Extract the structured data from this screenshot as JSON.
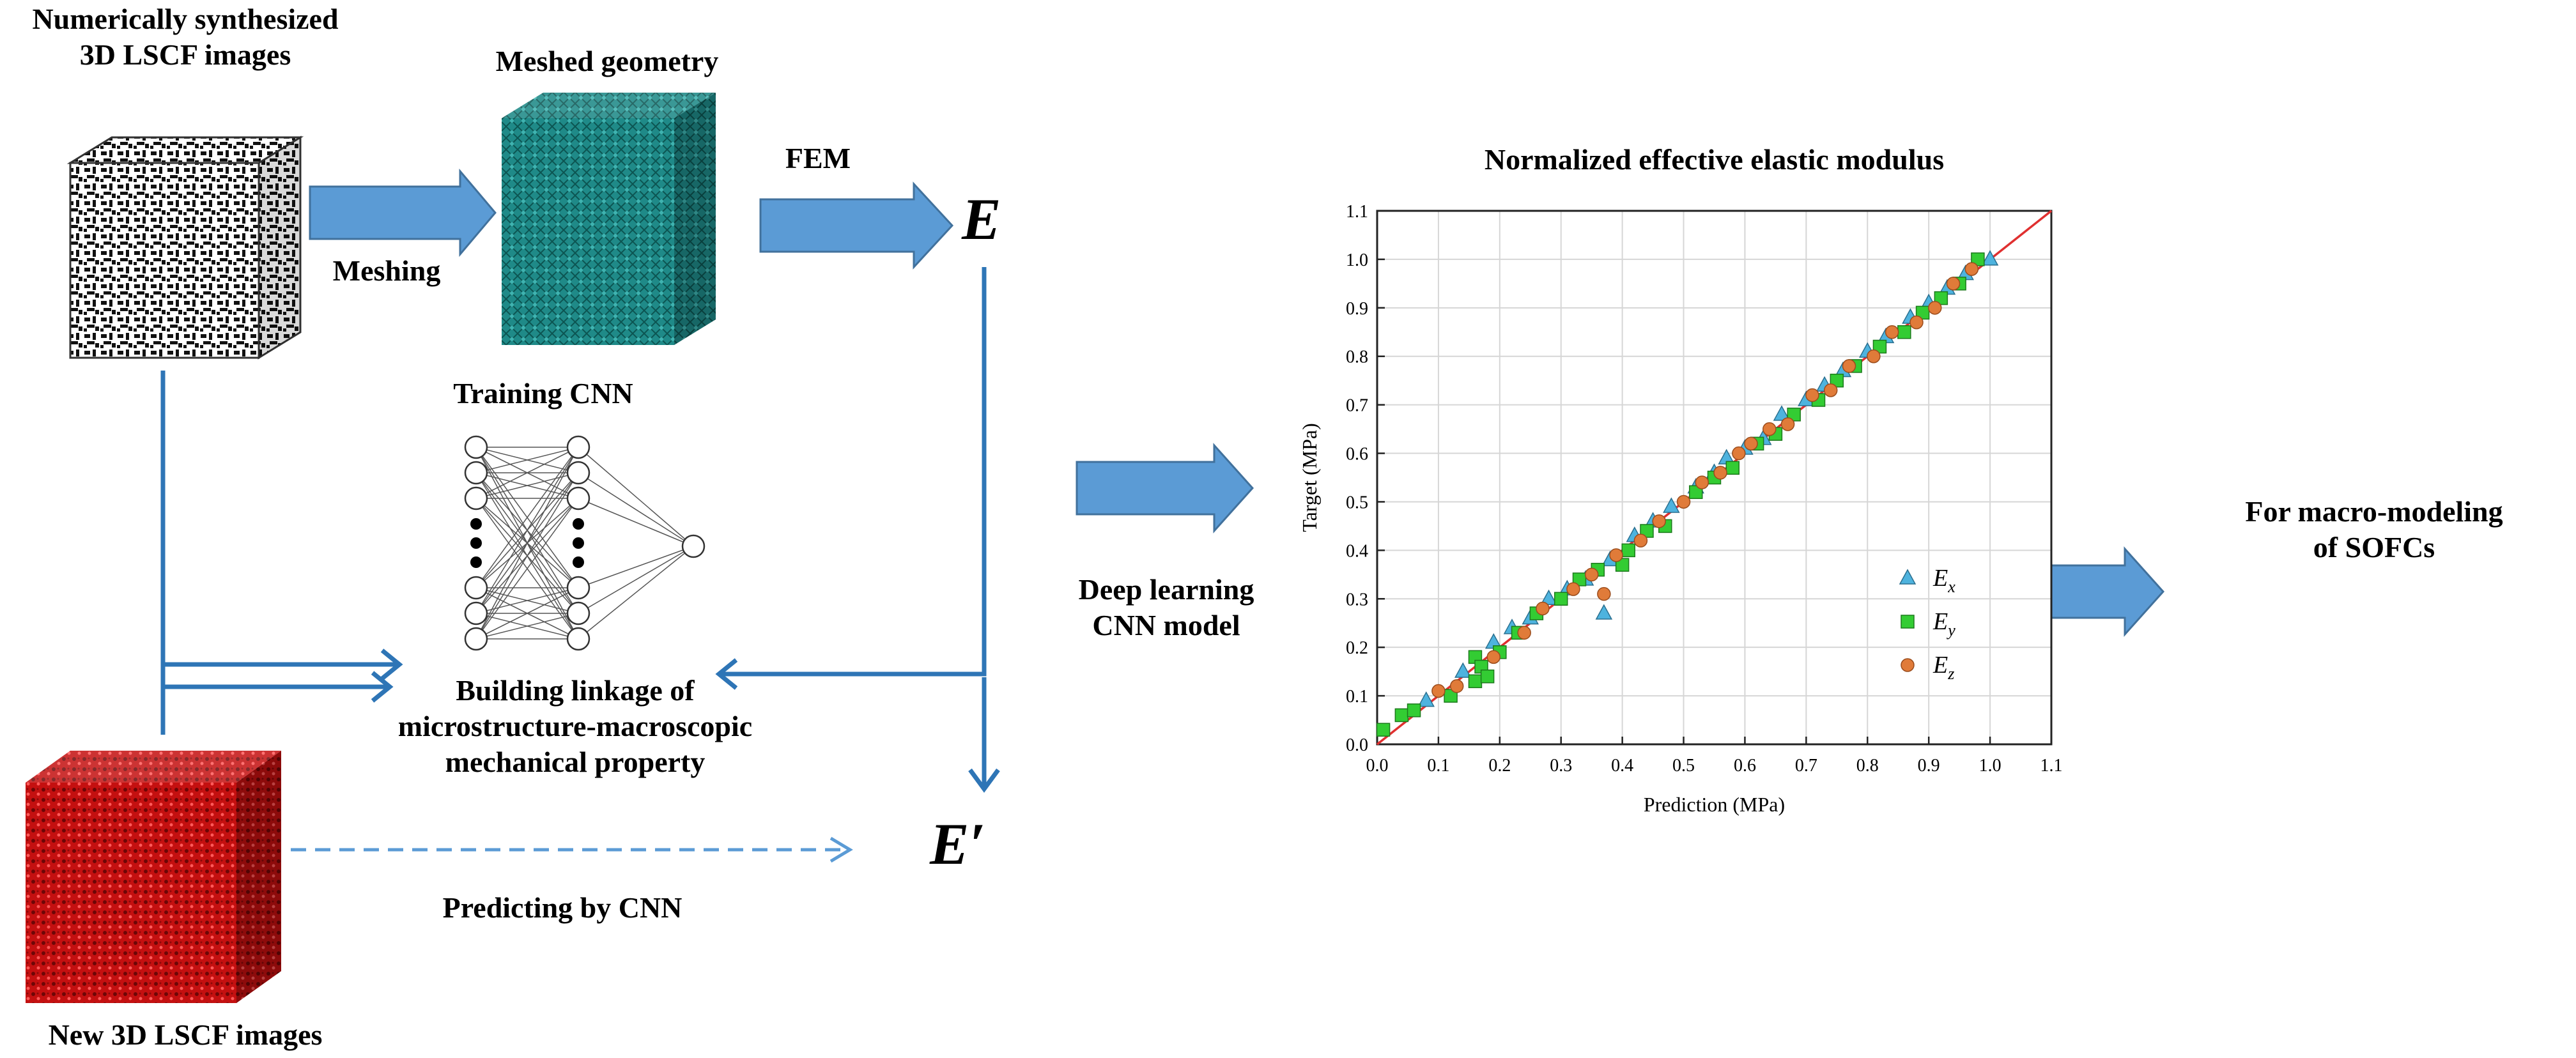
{
  "labels": {
    "synth_line1": "Numerically synthesized",
    "synth_line2": "3D LSCF images",
    "meshed": "Meshed geometry",
    "meshing": "Meshing",
    "fem": "FEM",
    "training": "Training CNN",
    "linkage_line1": "Building linkage of",
    "linkage_line2": "microstructure-macroscopic",
    "linkage_line3": "mechanical property",
    "predicting": "Predicting by CNN",
    "new_images": "New 3D LSCF images",
    "deep_line1": "Deep learning",
    "deep_line2": "CNN model",
    "macro_line1": "For macro-modeling",
    "macro_line2": "of SOFCs",
    "E": "E",
    "E_prime": "E′"
  },
  "colors": {
    "arrow_fill": "#5b9bd5",
    "line_blue": "#2e75b6",
    "mesh_teal": "#1f8a88",
    "red_cube": "#c41010"
  },
  "chart_data": {
    "type": "scatter",
    "title": "Normalized effective elastic modulus",
    "xlabel": "Prediction (MPa)",
    "ylabel": "Target (MPa)",
    "xlim": [
      0.0,
      1.1
    ],
    "ylim": [
      0.0,
      1.1
    ],
    "ticks": [
      "0.0",
      "0.1",
      "0.2",
      "0.3",
      "0.4",
      "0.5",
      "0.6",
      "0.7",
      "0.8",
      "0.9",
      "1.0",
      "1.1"
    ],
    "grid": true,
    "legend_position": "bottom-right",
    "reference_line": {
      "from": [
        0.0,
        0.0
      ],
      "to": [
        1.1,
        1.1
      ],
      "color": "#e03030"
    },
    "series": [
      {
        "name": "Ex",
        "marker": "triangle",
        "color": "#4eb3de",
        "points": [
          [
            0.08,
            0.09
          ],
          [
            0.14,
            0.15
          ],
          [
            0.19,
            0.21
          ],
          [
            0.22,
            0.24
          ],
          [
            0.25,
            0.26
          ],
          [
            0.28,
            0.3
          ],
          [
            0.31,
            0.32
          ],
          [
            0.34,
            0.34
          ],
          [
            0.37,
            0.27
          ],
          [
            0.38,
            0.38
          ],
          [
            0.42,
            0.43
          ],
          [
            0.45,
            0.46
          ],
          [
            0.48,
            0.49
          ],
          [
            0.52,
            0.53
          ],
          [
            0.55,
            0.56
          ],
          [
            0.57,
            0.59
          ],
          [
            0.6,
            0.61
          ],
          [
            0.63,
            0.63
          ],
          [
            0.66,
            0.68
          ],
          [
            0.7,
            0.71
          ],
          [
            0.73,
            0.74
          ],
          [
            0.76,
            0.77
          ],
          [
            0.8,
            0.81
          ],
          [
            0.83,
            0.84
          ],
          [
            0.87,
            0.88
          ],
          [
            0.9,
            0.91
          ],
          [
            0.93,
            0.94
          ],
          [
            0.96,
            0.97
          ],
          [
            1.0,
            1.0
          ]
        ]
      },
      {
        "name": "Ey",
        "marker": "square",
        "color": "#33cc33",
        "points": [
          [
            0.01,
            0.03
          ],
          [
            0.04,
            0.06
          ],
          [
            0.06,
            0.07
          ],
          [
            0.12,
            0.1
          ],
          [
            0.16,
            0.13
          ],
          [
            0.16,
            0.18
          ],
          [
            0.17,
            0.16
          ],
          [
            0.18,
            0.14
          ],
          [
            0.2,
            0.19
          ],
          [
            0.23,
            0.23
          ],
          [
            0.26,
            0.27
          ],
          [
            0.3,
            0.3
          ],
          [
            0.33,
            0.34
          ],
          [
            0.36,
            0.36
          ],
          [
            0.4,
            0.37
          ],
          [
            0.41,
            0.4
          ],
          [
            0.44,
            0.44
          ],
          [
            0.47,
            0.45
          ],
          [
            0.52,
            0.52
          ],
          [
            0.55,
            0.55
          ],
          [
            0.58,
            0.57
          ],
          [
            0.62,
            0.62
          ],
          [
            0.65,
            0.64
          ],
          [
            0.68,
            0.68
          ],
          [
            0.72,
            0.71
          ],
          [
            0.75,
            0.75
          ],
          [
            0.78,
            0.78
          ],
          [
            0.82,
            0.82
          ],
          [
            0.86,
            0.85
          ],
          [
            0.89,
            0.89
          ],
          [
            0.92,
            0.92
          ],
          [
            0.95,
            0.95
          ],
          [
            0.98,
            1.0
          ]
        ]
      },
      {
        "name": "Ez",
        "marker": "circle",
        "color": "#e07b39",
        "points": [
          [
            0.1,
            0.11
          ],
          [
            0.13,
            0.12
          ],
          [
            0.19,
            0.18
          ],
          [
            0.24,
            0.23
          ],
          [
            0.27,
            0.28
          ],
          [
            0.32,
            0.32
          ],
          [
            0.35,
            0.35
          ],
          [
            0.37,
            0.31
          ],
          [
            0.39,
            0.39
          ],
          [
            0.43,
            0.42
          ],
          [
            0.46,
            0.46
          ],
          [
            0.5,
            0.5
          ],
          [
            0.53,
            0.54
          ],
          [
            0.56,
            0.56
          ],
          [
            0.59,
            0.6
          ],
          [
            0.61,
            0.62
          ],
          [
            0.64,
            0.65
          ],
          [
            0.67,
            0.66
          ],
          [
            0.71,
            0.72
          ],
          [
            0.74,
            0.73
          ],
          [
            0.77,
            0.78
          ],
          [
            0.81,
            0.8
          ],
          [
            0.84,
            0.85
          ],
          [
            0.88,
            0.87
          ],
          [
            0.91,
            0.9
          ],
          [
            0.94,
            0.95
          ],
          [
            0.97,
            0.98
          ]
        ]
      }
    ]
  }
}
